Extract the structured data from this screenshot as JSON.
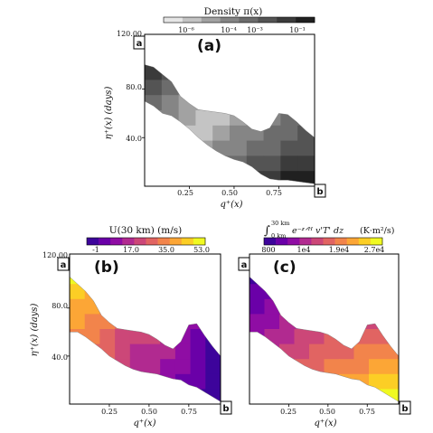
{
  "chart_data": [
    {
      "type": "heatmap",
      "panel_label": "(a)",
      "colorbar": {
        "title": "Density π(x)",
        "tick_labels": [
          "10⁻⁶",
          "10⁻⁴",
          "10⁻³",
          "10⁻¹"
        ],
        "colors": [
          "#e6e6e6",
          "#c4c4c4",
          "#a2a2a2",
          "#858585",
          "#6c6c6c",
          "#545454",
          "#3b3b3b",
          "#202020"
        ]
      },
      "xlabel": "q⁺(x)",
      "ylabel": "η⁺(x) (days)",
      "x_ticks": [
        0.25,
        0.5,
        0.75
      ],
      "x_tick_labels": [
        "0.25",
        "0.50",
        "0.75"
      ],
      "y_ticks": [
        40,
        80,
        120
      ],
      "y_tick_labels": [
        "40.0",
        "80.0",
        "120.00"
      ],
      "xlim": [
        0.0,
        0.95
      ],
      "ylim": [
        0,
        125
      ],
      "corner_labels": {
        "a": "a",
        "b": "b"
      },
      "band": {
        "x": [
          0.0,
          0.05,
          0.1,
          0.15,
          0.2,
          0.25,
          0.3,
          0.35,
          0.4,
          0.45,
          0.5,
          0.55,
          0.6,
          0.65,
          0.7,
          0.75,
          0.8,
          0.85,
          0.9,
          0.95
        ],
        "upper": [
          100,
          98,
          92,
          86,
          74,
          68,
          63,
          62,
          61,
          60,
          58,
          53,
          47,
          45,
          48,
          60,
          59,
          53,
          46,
          40
        ],
        "lower": [
          70,
          66,
          60,
          58,
          53,
          47,
          40,
          34,
          29,
          25,
          22,
          20,
          16,
          10,
          6,
          5,
          5,
          4,
          3,
          2
        ]
      },
      "cell_levels": [
        [
          7,
          7,
          6,
          5,
          3,
          4,
          5,
          6,
          6,
          7
        ],
        [
          7,
          6,
          5,
          4,
          3,
          3,
          4,
          5,
          6,
          6
        ],
        [
          6,
          5,
          4,
          3,
          2,
          2,
          3,
          4,
          5,
          6
        ],
        [
          5,
          4,
          3,
          2,
          2,
          2,
          3,
          4,
          5,
          5
        ],
        [
          4,
          3,
          2,
          2,
          1,
          2,
          3,
          4,
          4,
          5
        ],
        [
          3,
          3,
          2,
          1,
          1,
          2,
          3,
          3,
          4,
          4
        ],
        [
          2,
          2,
          1,
          1,
          2,
          3,
          3,
          4,
          4,
          5
        ],
        [
          2,
          1,
          1,
          2,
          3,
          3,
          4,
          4,
          5,
          5
        ],
        [
          3,
          2,
          2,
          3,
          4,
          4,
          5,
          5,
          6,
          6
        ],
        [
          4,
          3,
          3,
          4,
          5,
          5,
          6,
          6,
          7,
          7
        ]
      ]
    },
    {
      "type": "heatmap",
      "panel_label": "(b)",
      "colorbar": {
        "title": "U(30 km) (m/s)",
        "tick_labels": [
          "-1",
          "17.0",
          "35.0",
          "53.0"
        ],
        "colors": [
          "#3d049b",
          "#6a00a8",
          "#8f0da4",
          "#b12a90",
          "#cc4778",
          "#e16462",
          "#f2844b",
          "#fca636",
          "#fcce25",
          "#f0f921"
        ]
      },
      "xlabel": "q⁺(x)",
      "ylabel": "η⁺(x) (days)",
      "x_ticks": [
        0.25,
        0.5,
        0.75
      ],
      "x_tick_labels": [
        "0.25",
        "0.50",
        "0.75"
      ],
      "y_ticks": [
        40,
        80,
        120
      ],
      "y_tick_labels": [
        "40.0",
        "80.0",
        "120.00"
      ],
      "xlim": [
        0.0,
        0.95
      ],
      "ylim": [
        0,
        125
      ],
      "corner_labels": {
        "a": "a",
        "b": "b"
      },
      "band": {
        "x": [
          0.0,
          0.05,
          0.1,
          0.15,
          0.2,
          0.25,
          0.3,
          0.35,
          0.4,
          0.45,
          0.5,
          0.55,
          0.6,
          0.65,
          0.7,
          0.75,
          0.8,
          0.85,
          0.9,
          0.95
        ],
        "upper": [
          106,
          100,
          94,
          86,
          74,
          68,
          63,
          62,
          61,
          60,
          58,
          54,
          49,
          46,
          52,
          66,
          67,
          57,
          48,
          40
        ],
        "lower": [
          60,
          60,
          56,
          51,
          46,
          40,
          36,
          32,
          29,
          27,
          26,
          25,
          23,
          21,
          20,
          16,
          14,
          10,
          6,
          2
        ]
      },
      "cell_levels": [
        [
          9,
          9,
          8,
          7,
          6,
          6,
          5,
          4,
          3,
          2
        ],
        [
          9,
          8,
          7,
          7,
          6,
          5,
          5,
          4,
          2,
          1
        ],
        [
          8,
          7,
          7,
          6,
          6,
          5,
          4,
          3,
          2,
          1
        ],
        [
          7,
          7,
          6,
          6,
          5,
          4,
          3,
          3,
          2,
          1
        ],
        [
          7,
          6,
          6,
          5,
          4,
          3,
          3,
          2,
          2,
          1
        ],
        [
          6,
          6,
          5,
          4,
          4,
          4,
          3,
          2,
          1,
          0
        ],
        [
          6,
          5,
          5,
          4,
          3,
          3,
          3,
          2,
          1,
          0
        ],
        [
          5,
          5,
          4,
          4,
          3,
          3,
          2,
          2,
          1,
          0
        ],
        [
          5,
          4,
          4,
          3,
          3,
          2,
          2,
          1,
          1,
          0
        ],
        [
          4,
          4,
          3,
          3,
          2,
          2,
          1,
          1,
          0,
          0
        ]
      ]
    },
    {
      "type": "heatmap",
      "panel_label": "(c)",
      "colorbar": {
        "title": "∫₀ ₖₘ³⁰ ᵏᵐ e⁻ᶻᐟᴴ v'T' dz (K·m²/s)",
        "title_parts": {
          "integral_top": "30 km",
          "integral_bottom": "0 km",
          "expr": "e⁻ᶻᐟᴴ v'T' dz",
          "unit": "(K·m²/s)"
        },
        "tick_labels": [
          "800",
          "1e4",
          "1.9e4",
          "2.7e4"
        ],
        "colors": [
          "#3d049b",
          "#6a00a8",
          "#8f0da4",
          "#b12a90",
          "#cc4778",
          "#e16462",
          "#f2844b",
          "#fca636",
          "#fcce25",
          "#f0f921"
        ]
      },
      "xlabel": "q⁺(x)",
      "ylabel": "",
      "x_ticks": [
        0.25,
        0.5,
        0.75
      ],
      "x_tick_labels": [
        "0.25",
        "0.50",
        "0.75"
      ],
      "xlim": [
        0.0,
        0.95
      ],
      "ylim": [
        0,
        125
      ],
      "corner_labels": {
        "a": "a",
        "b": "b"
      },
      "band": {
        "x": [
          0.0,
          0.05,
          0.1,
          0.15,
          0.2,
          0.25,
          0.3,
          0.35,
          0.4,
          0.45,
          0.5,
          0.55,
          0.6,
          0.65,
          0.7,
          0.75,
          0.8,
          0.85,
          0.9,
          0.95
        ],
        "upper": [
          106,
          100,
          94,
          86,
          74,
          68,
          63,
          62,
          61,
          60,
          58,
          54,
          49,
          46,
          52,
          66,
          67,
          57,
          48,
          40
        ],
        "lower": [
          60,
          60,
          56,
          51,
          46,
          40,
          36,
          32,
          29,
          27,
          26,
          25,
          23,
          21,
          20,
          16,
          14,
          10,
          6,
          2
        ]
      },
      "cell_levels": [
        [
          0,
          0,
          1,
          1,
          2,
          2,
          3,
          2,
          1,
          1
        ],
        [
          0,
          1,
          1,
          2,
          2,
          3,
          3,
          2,
          2,
          1
        ],
        [
          1,
          1,
          2,
          2,
          3,
          3,
          3,
          3,
          2,
          2
        ],
        [
          1,
          2,
          2,
          3,
          3,
          4,
          4,
          3,
          3,
          3
        ],
        [
          2,
          2,
          3,
          3,
          4,
          4,
          4,
          4,
          4,
          4
        ],
        [
          2,
          3,
          3,
          4,
          4,
          5,
          5,
          5,
          5,
          5
        ],
        [
          3,
          3,
          4,
          4,
          5,
          5,
          5,
          6,
          6,
          6
        ],
        [
          3,
          4,
          4,
          5,
          5,
          6,
          6,
          6,
          7,
          7
        ],
        [
          4,
          4,
          5,
          5,
          6,
          6,
          7,
          7,
          8,
          8
        ],
        [
          4,
          5,
          5,
          6,
          6,
          7,
          7,
          8,
          9,
          9
        ]
      ]
    }
  ]
}
